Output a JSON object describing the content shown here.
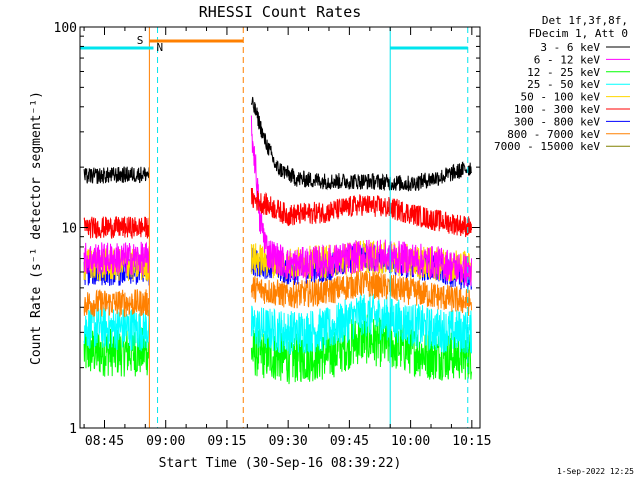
{
  "chart_data": {
    "type": "line",
    "title": "RHESSI Count Rates",
    "xlabel": "Start Time (30-Sep-16 08:39:22)",
    "ylabel": "Count Rate (s⁻¹ detector segment⁻¹)",
    "yscale": "log",
    "ylim": [
      1,
      100
    ],
    "xlim": [
      "08:39",
      "10:17"
    ],
    "x_ticks": [
      "08:45",
      "09:00",
      "09:15",
      "09:30",
      "09:45",
      "10:00",
      "10:15"
    ],
    "y_ticks": [
      "1",
      "10",
      "100"
    ],
    "legend_header": [
      "Det 1f,3f,8f,",
      "FDecim 1, Att 0"
    ],
    "legend_position": "right",
    "series": [
      {
        "name": "3 - 6 keV",
        "color": "#000000",
        "x": [
          "08:40",
          "08:56",
          "09:21",
          "09:22",
          "09:24",
          "09:27",
          "09:32",
          "09:40",
          "09:50",
          "10:00",
          "10:08",
          "10:15"
        ],
        "y": [
          18,
          18.5,
          42,
          38,
          28,
          20,
          17.5,
          17,
          17,
          16.5,
          18,
          20
        ]
      },
      {
        "name": "6 - 12 keV",
        "color": "#ff00ff",
        "x": [
          "08:40",
          "08:56",
          "09:21",
          "09:22",
          "09:23",
          "09:25",
          "09:30",
          "09:40",
          "09:50",
          "10:00",
          "10:08",
          "10:15"
        ],
        "y": [
          7,
          7,
          30,
          20,
          11,
          7.5,
          6.5,
          6.8,
          7.3,
          7,
          6.6,
          6
        ]
      },
      {
        "name": "12 - 25 keV",
        "color": "#00ff00",
        "x": [
          "08:40",
          "08:56",
          "09:21",
          "09:30",
          "09:40",
          "09:48",
          "09:55",
          "10:05",
          "10:15"
        ],
        "y": [
          2.4,
          2.4,
          2.4,
          2.2,
          2.3,
          2.8,
          2.6,
          2.3,
          2.3
        ]
      },
      {
        "name": "25 - 50 keV",
        "color": "#00ffff",
        "x": [
          "08:40",
          "08:56",
          "09:21",
          "09:30",
          "09:40",
          "09:48",
          "09:55",
          "10:05",
          "10:15"
        ],
        "y": [
          3.2,
          3.1,
          3.2,
          3,
          3.1,
          3.7,
          3.5,
          3.1,
          3
        ]
      },
      {
        "name": "50 - 100 keV",
        "color": "#ffd700",
        "x": [
          "08:40",
          "08:56",
          "09:21",
          "09:30",
          "09:40",
          "09:48",
          "09:55",
          "10:05",
          "10:15"
        ],
        "y": [
          6.5,
          6.5,
          7,
          6.6,
          6.8,
          7.2,
          7,
          6.6,
          6.4
        ]
      },
      {
        "name": "100 - 300 keV",
        "color": "#ff0000",
        "x": [
          "08:40",
          "08:56",
          "09:21",
          "09:30",
          "09:40",
          "09:48",
          "09:55",
          "10:05",
          "10:15"
        ],
        "y": [
          10,
          10,
          14,
          11.5,
          12,
          13,
          12.5,
          11,
          10
        ]
      },
      {
        "name": "300 - 800 keV",
        "color": "#0000ff",
        "x": [
          "08:40",
          "08:56",
          "09:21",
          "09:30",
          "09:40",
          "09:48",
          "09:55",
          "10:05",
          "10:15"
        ],
        "y": [
          6,
          6,
          6.8,
          6,
          6.3,
          7.2,
          6.8,
          6.2,
          5.6
        ]
      },
      {
        "name": "800 - 7000 keV",
        "color": "#ff8000",
        "x": [
          "08:40",
          "08:56",
          "09:21",
          "09:30",
          "09:40",
          "09:48",
          "09:55",
          "10:05",
          "10:15"
        ],
        "y": [
          4.2,
          4.2,
          5,
          4.6,
          4.8,
          5.3,
          5,
          4.6,
          4.2
        ]
      },
      {
        "name": "7000 - 15000 keV",
        "color": "#808000",
        "x": [],
        "y": []
      }
    ],
    "annotations": {
      "night_label": "N",
      "saa_label": "S",
      "night_color": "#00e5ee",
      "saa_color": "#ff8000",
      "night_bars": [
        [
          "08:39",
          "08:57"
        ],
        [
          "09:55",
          "10:14"
        ]
      ],
      "saa_bars": [
        [
          "08:56",
          "09:19"
        ]
      ],
      "night_lines_solid": [
        "08:39",
        "09:55"
      ],
      "night_lines_dashed": [
        "08:58",
        "10:14"
      ],
      "saa_lines_solid": [
        "08:56"
      ],
      "saa_lines_dashed": [
        "09:19"
      ],
      "data_gap": [
        "08:56",
        "09:21"
      ]
    }
  },
  "footer_timestamp": "1-Sep-2022 12:25"
}
